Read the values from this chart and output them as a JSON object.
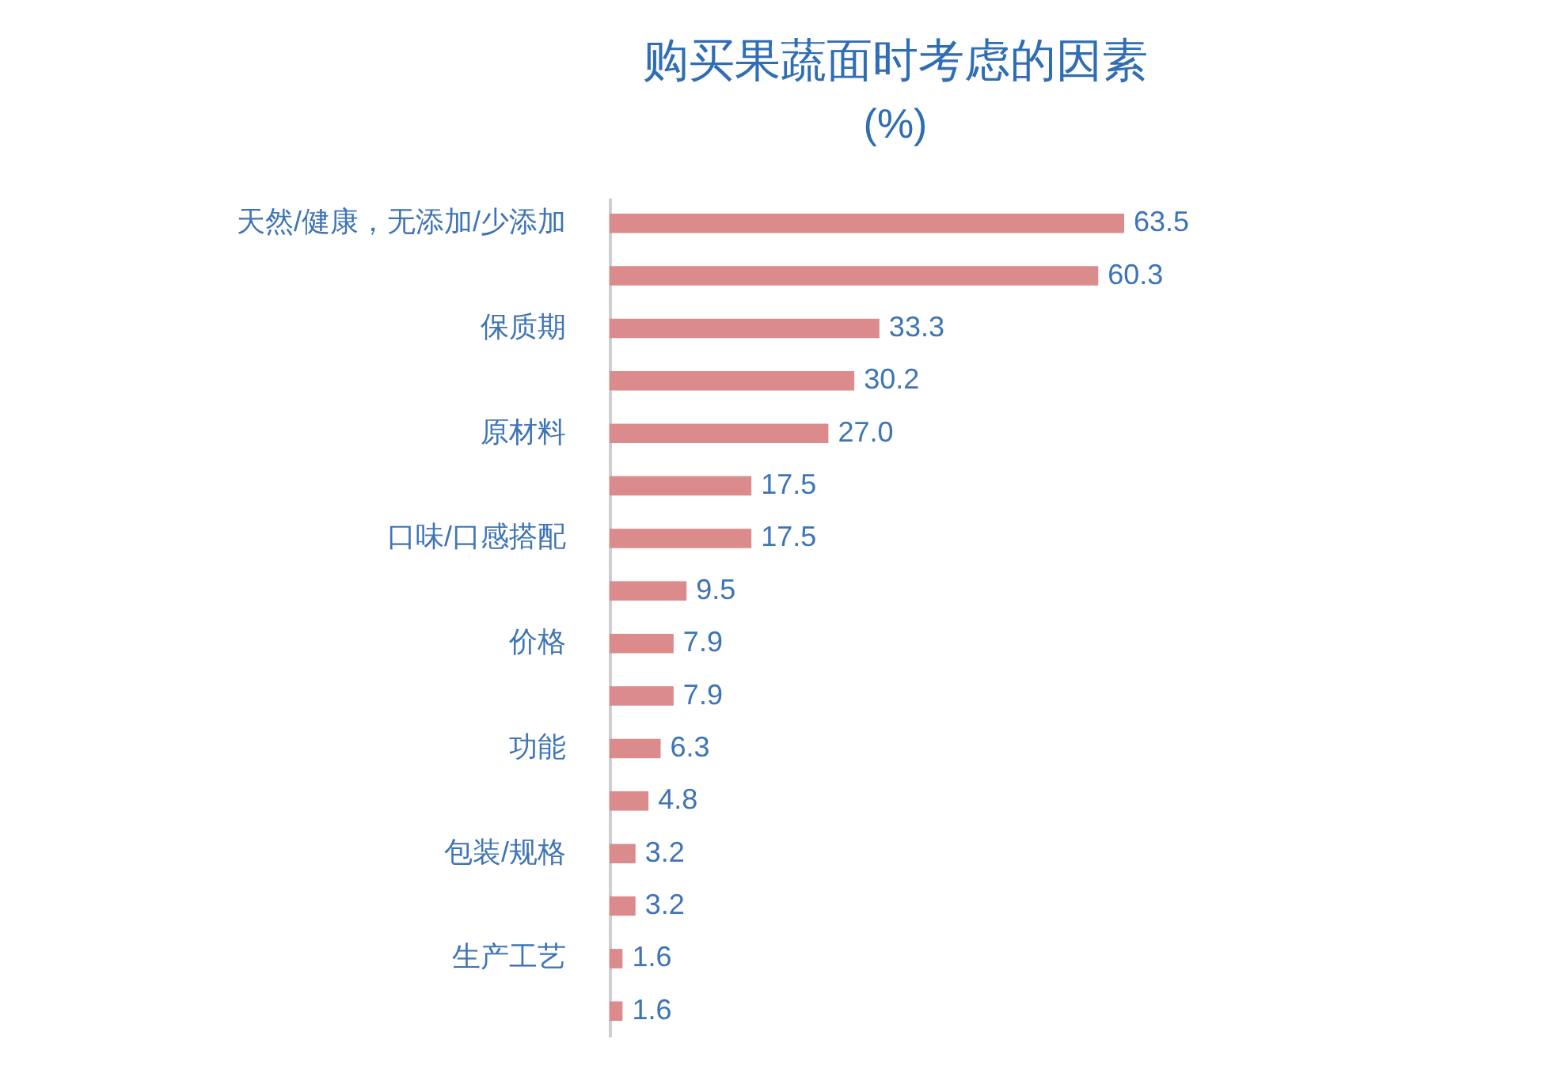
{
  "chart_data": {
    "type": "bar",
    "orientation": "horizontal",
    "title": "购买果蔬面时考虑的因素",
    "subtitle": "(%)",
    "categories": [
      "天然/健康，无添加/少添加",
      null,
      "保质期",
      null,
      "原材料",
      null,
      "口味/口感搭配",
      null,
      "价格",
      null,
      "功能",
      null,
      "包装/规格",
      null,
      "生产工艺",
      null
    ],
    "values": [
      63.5,
      60.3,
      33.3,
      30.2,
      27.0,
      17.5,
      17.5,
      9.5,
      7.9,
      7.9,
      6.3,
      4.8,
      3.2,
      3.2,
      1.6,
      1.6
    ],
    "value_labels": [
      "63.5",
      "60.3",
      "33.3",
      "30.2",
      "27.0",
      "17.5",
      "17.5",
      "9.5",
      "7.9",
      "7.9",
      "6.3",
      "4.8",
      "3.2",
      "3.2",
      "1.6",
      "1.6"
    ],
    "color": "#db8b8c"
  }
}
